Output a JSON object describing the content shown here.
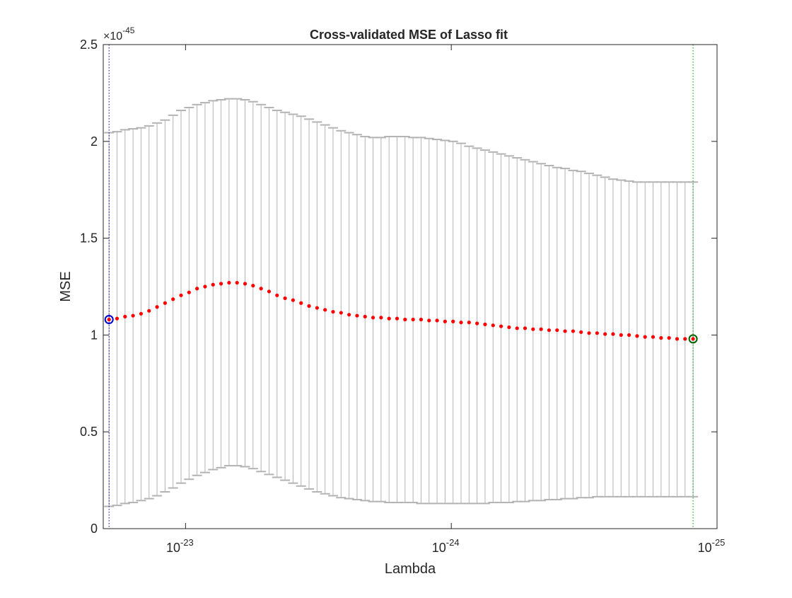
{
  "chart_data": {
    "type": "scatter",
    "title": "Cross-validated MSE of Lasso fit",
    "xlabel": "Lambda",
    "ylabel": "MSE",
    "y_exponent_label": "×10",
    "y_exponent": "-45",
    "x_scale": "log",
    "x_direction": "reversed",
    "xlim": [
      2.04e-23,
      1e-25
    ],
    "ylim": [
      0,
      2.5
    ],
    "y_ticks": [
      0,
      0.5,
      1,
      1.5,
      2,
      2.5
    ],
    "y_tick_labels": [
      "0",
      "0.5",
      "1",
      "1.5",
      "2",
      "2.5"
    ],
    "x_ticks": [
      {
        "value": 1e-23,
        "base": "10",
        "exp": "-23"
      },
      {
        "value": 1e-24,
        "base": "10",
        "exp": "-24"
      },
      {
        "value": 1e-25,
        "base": "10",
        "exp": "-25"
      }
    ],
    "grid": false,
    "series": [
      {
        "lambda": [
          1.94e-23,
          1.8101e-23,
          1.6889e-23,
          1.5758e-23,
          1.4703e-23,
          1.3718e-23,
          1.2799e-23,
          1.1942e-23,
          1.1142e-23,
          1.0396e-23,
          9.6999e-24,
          9.0503e-24,
          8.4442e-24,
          7.8787e-24,
          7.351e-24,
          6.8587e-24,
          6.3994e-24,
          5.9708e-24,
          5.5709e-24,
          5.1979e-24,
          4.8497e-24,
          4.5249e-24,
          4.2219e-24,
          3.9392e-24,
          3.6753e-24,
          3.4292e-24,
          3.1996e-24,
          2.9853e-24,
          2.7854e-24,
          2.5988e-24,
          2.4248e-24,
          2.2624e-24,
          2.1109e-24,
          1.9695e-24,
          1.8376e-24,
          1.7146e-24,
          1.5997e-24,
          1.4926e-24,
          1.3926e-24,
          1.2994e-24,
          1.2124e-24,
          1.1312e-24,
          1.0554e-24,
          9.8473e-25,
          9.1878e-25,
          8.5725e-25,
          7.9984e-25,
          7.4628e-25,
          6.963e-25,
          6.4967e-25,
          6.0616e-25,
          5.6557e-25,
          5.2769e-25,
          4.9235e-25,
          4.5938e-25,
          4.2862e-25,
          3.9991e-25,
          3.7313e-25,
          3.4814e-25,
          3.2483e-25,
          3.0307e-25,
          2.8278e-25,
          2.6384e-25,
          2.4617e-25,
          2.2969e-25,
          2.143e-25,
          1.9995e-25,
          1.8656e-25,
          1.7407e-25,
          1.6241e-25,
          1.5153e-25,
          1.4139e-25,
          1.3192e-25,
          1.2308e-25
        ],
        "mse": [
          1.08,
          1.085,
          1.095,
          1.1,
          1.11,
          1.125,
          1.145,
          1.165,
          1.185,
          1.205,
          1.22,
          1.24,
          1.25,
          1.26,
          1.265,
          1.27,
          1.27,
          1.265,
          1.255,
          1.24,
          1.225,
          1.205,
          1.19,
          1.18,
          1.165,
          1.15,
          1.14,
          1.13,
          1.12,
          1.115,
          1.105,
          1.1,
          1.095,
          1.09,
          1.09,
          1.085,
          1.085,
          1.08,
          1.08,
          1.08,
          1.075,
          1.075,
          1.07,
          1.07,
          1.065,
          1.065,
          1.06,
          1.055,
          1.05,
          1.045,
          1.04,
          1.035,
          1.035,
          1.03,
          1.03,
          1.025,
          1.025,
          1.02,
          1.02,
          1.015,
          1.01,
          1.01,
          1.005,
          1.005,
          1.0,
          1.0,
          0.995,
          0.99,
          0.99,
          0.985,
          0.985,
          0.98,
          0.98,
          0.98
        ],
        "upper": [
          2.045,
          2.05,
          2.06,
          2.065,
          2.07,
          2.08,
          2.095,
          2.11,
          2.135,
          2.16,
          2.175,
          2.19,
          2.2,
          2.21,
          2.215,
          2.22,
          2.22,
          2.215,
          2.205,
          2.19,
          2.175,
          2.16,
          2.15,
          2.14,
          2.13,
          2.115,
          2.1,
          2.085,
          2.07,
          2.055,
          2.045,
          2.035,
          2.025,
          2.02,
          2.02,
          2.025,
          2.025,
          2.025,
          2.02,
          2.02,
          2.015,
          2.01,
          2.005,
          2.0,
          1.99,
          1.975,
          1.965,
          1.955,
          1.945,
          1.935,
          1.925,
          1.915,
          1.905,
          1.895,
          1.885,
          1.875,
          1.865,
          1.86,
          1.85,
          1.845,
          1.835,
          1.825,
          1.815,
          1.805,
          1.8,
          1.795,
          1.79,
          1.79,
          1.79,
          1.79,
          1.79,
          1.79,
          1.79,
          1.79
        ],
        "lower": [
          0.115,
          0.12,
          0.13,
          0.135,
          0.145,
          0.155,
          0.17,
          0.19,
          0.21,
          0.235,
          0.255,
          0.275,
          0.29,
          0.305,
          0.315,
          0.325,
          0.325,
          0.32,
          0.31,
          0.295,
          0.28,
          0.265,
          0.25,
          0.235,
          0.22,
          0.205,
          0.19,
          0.18,
          0.17,
          0.16,
          0.155,
          0.15,
          0.145,
          0.14,
          0.14,
          0.135,
          0.135,
          0.135,
          0.135,
          0.13,
          0.13,
          0.13,
          0.13,
          0.13,
          0.13,
          0.13,
          0.13,
          0.13,
          0.135,
          0.135,
          0.135,
          0.14,
          0.14,
          0.145,
          0.145,
          0.15,
          0.15,
          0.155,
          0.155,
          0.16,
          0.16,
          0.165,
          0.165,
          0.165,
          0.165,
          0.165,
          0.165,
          0.165,
          0.165,
          0.165,
          0.165,
          0.165,
          0.165,
          0.165
        ]
      }
    ],
    "markers": [
      {
        "lambda": 1.94e-23,
        "mse": 1.08,
        "color": "#0000cc",
        "style": "circle"
      },
      {
        "lambda": 1.2308e-25,
        "mse": 0.98,
        "color": "#006400",
        "style": "circle"
      }
    ],
    "vlines": [
      {
        "lambda": 1.94e-23,
        "color": "#0000cc",
        "style": "dotted"
      },
      {
        "lambda": 1.2308e-25,
        "color": "#00a000",
        "style": "dotted"
      }
    ],
    "colors": {
      "points": "#ff0000",
      "errorbars": "#b3b3b3",
      "axes": "#262626",
      "background": "#ffffff"
    }
  }
}
